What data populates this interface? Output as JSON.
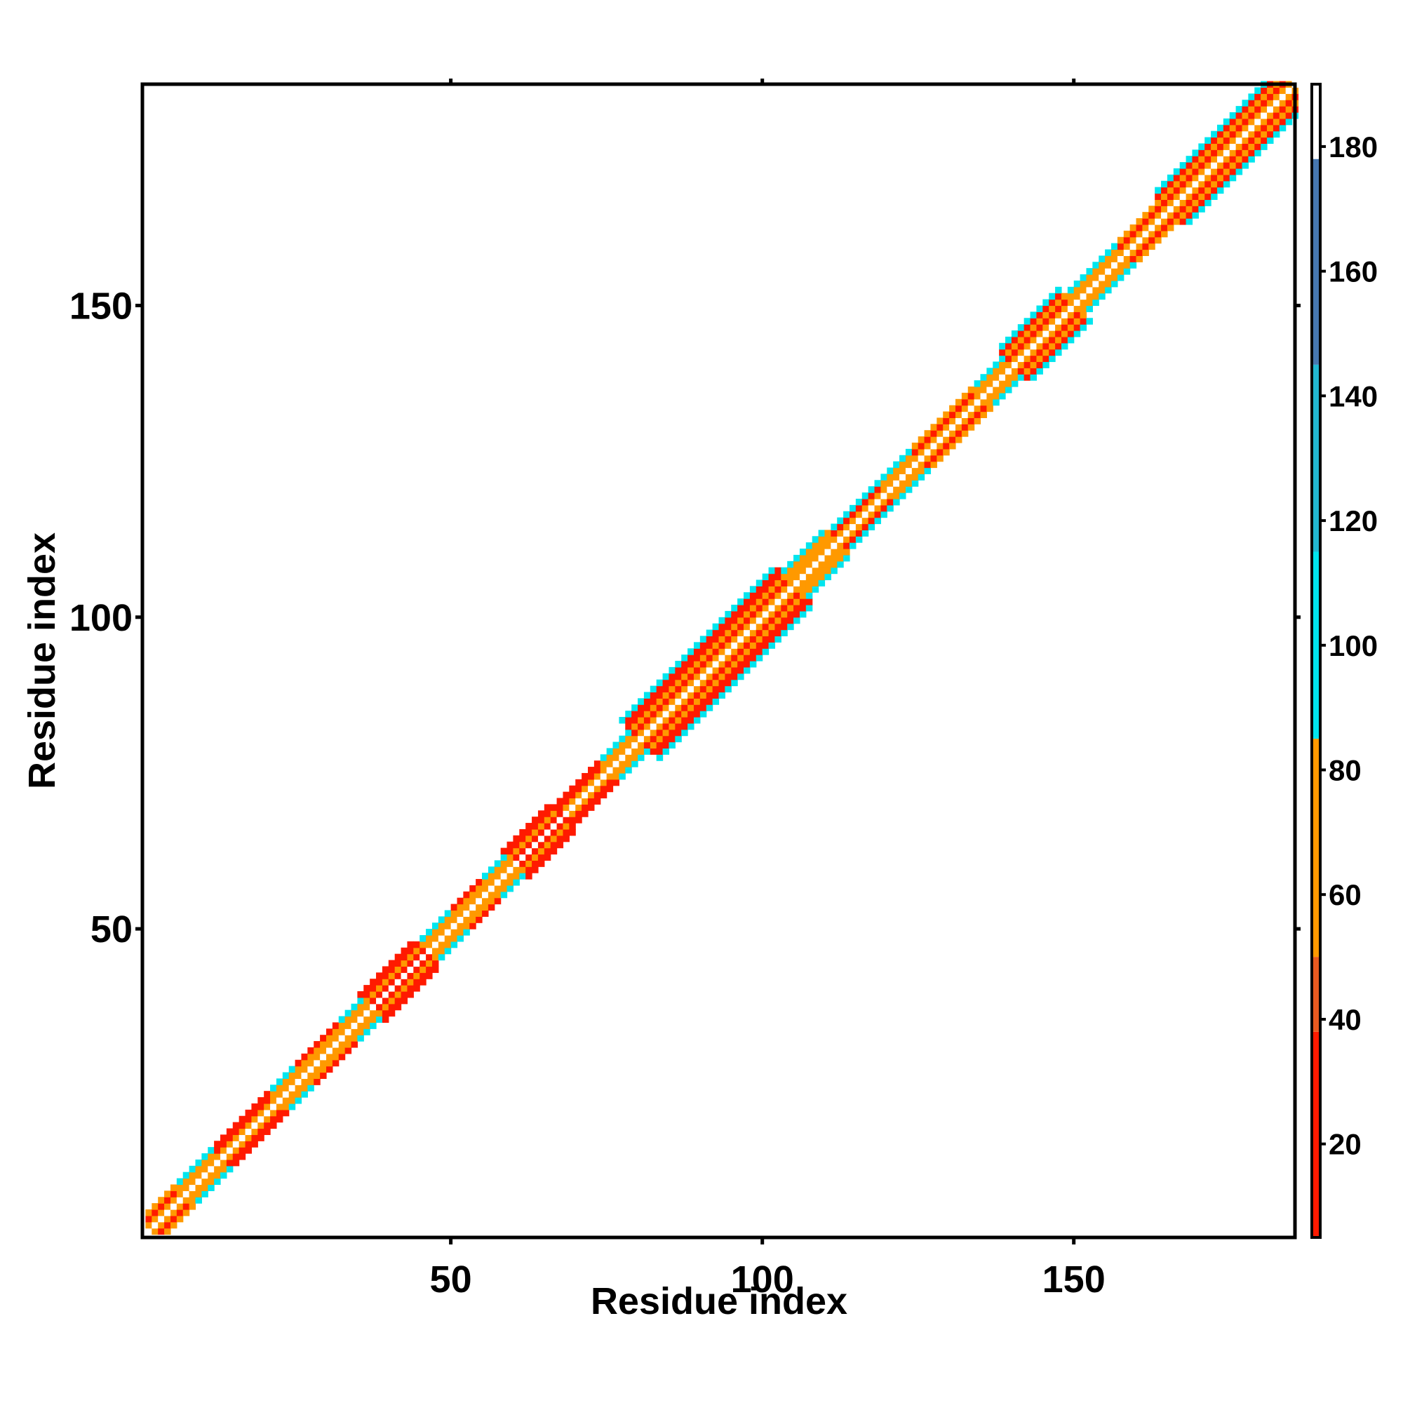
{
  "chart_data": {
    "type": "heatmap",
    "title": "",
    "xlabel": "Residue index",
    "ylabel": "Residue index",
    "xlim": [
      1,
      185
    ],
    "ylim": [
      1,
      185
    ],
    "x_ticks": [
      50,
      100,
      150
    ],
    "y_ticks": [
      50,
      100,
      150
    ],
    "colorbar": {
      "range": [
        5,
        190
      ],
      "ticks": [
        20,
        40,
        60,
        80,
        100,
        120,
        140,
        160,
        180
      ],
      "bands": [
        {
          "from": 5,
          "to": 38,
          "color": "#ff1a00"
        },
        {
          "from": 38,
          "to": 50,
          "color": "#e85a20"
        },
        {
          "from": 50,
          "to": 85,
          "color": "#ff9900"
        },
        {
          "from": 85,
          "to": 115,
          "color": "#00e5ee"
        },
        {
          "from": 115,
          "to": 145,
          "color": "#22b7d2"
        },
        {
          "from": 145,
          "to": 178,
          "color": "#4677b0"
        },
        {
          "from": 178,
          "to": 190,
          "color": "#ffffff"
        }
      ]
    },
    "cell_colors": {
      "red": "#ff1a00",
      "orange": "#ff9900",
      "cyan": "#00e5ee",
      "diagonal": "#ffffff"
    },
    "segments": [
      {
        "start": 1,
        "end": 7,
        "half_width": 3,
        "pattern": [
          "orange",
          "red",
          "orange"
        ]
      },
      {
        "start": 7,
        "end": 13,
        "half_width": 3,
        "pattern": [
          "orange",
          "orange",
          "cyan"
        ]
      },
      {
        "start": 13,
        "end": 22,
        "half_width": 3,
        "pattern": [
          "orange",
          "red",
          "red"
        ]
      },
      {
        "start": 22,
        "end": 26,
        "half_width": 3,
        "pattern": [
          "orange",
          "orange",
          "cyan"
        ]
      },
      {
        "start": 26,
        "end": 33,
        "half_width": 3,
        "pattern": [
          "orange",
          "orange",
          "red"
        ]
      },
      {
        "start": 33,
        "end": 37,
        "half_width": 3,
        "pattern": [
          "orange",
          "orange",
          "cyan"
        ]
      },
      {
        "start": 37,
        "end": 46,
        "half_width": 4,
        "pattern": [
          "red",
          "orange",
          "red",
          "red"
        ]
      },
      {
        "start": 46,
        "end": 51,
        "half_width": 3,
        "pattern": [
          "orange",
          "orange",
          "cyan"
        ]
      },
      {
        "start": 51,
        "end": 56,
        "half_width": 3,
        "pattern": [
          "orange",
          "orange",
          "red"
        ]
      },
      {
        "start": 56,
        "end": 60,
        "half_width": 3,
        "pattern": [
          "orange",
          "orange",
          "cyan"
        ]
      },
      {
        "start": 60,
        "end": 68,
        "half_width": 4,
        "pattern": [
          "red",
          "orange",
          "red",
          "red"
        ]
      },
      {
        "start": 68,
        "end": 75,
        "half_width": 3,
        "pattern": [
          "orange",
          "red",
          "red"
        ]
      },
      {
        "start": 75,
        "end": 80,
        "half_width": 3,
        "pattern": [
          "orange",
          "orange",
          "cyan"
        ]
      },
      {
        "start": 80,
        "end": 105,
        "half_width": 6,
        "pattern": [
          "orange",
          "red",
          "orange",
          "red",
          "red",
          "cyan"
        ]
      },
      {
        "start": 105,
        "end": 112,
        "half_width": 4,
        "pattern": [
          "orange",
          "orange",
          "orange",
          "cyan"
        ]
      },
      {
        "start": 112,
        "end": 120,
        "half_width": 3,
        "pattern": [
          "orange",
          "red",
          "cyan"
        ]
      },
      {
        "start": 120,
        "end": 125,
        "half_width": 3,
        "pattern": [
          "orange",
          "orange",
          "cyan"
        ]
      },
      {
        "start": 125,
        "end": 135,
        "half_width": 3,
        "pattern": [
          "orange",
          "red",
          "orange"
        ]
      },
      {
        "start": 135,
        "end": 140,
        "half_width": 3,
        "pattern": [
          "orange",
          "orange",
          "cyan"
        ]
      },
      {
        "start": 140,
        "end": 150,
        "half_width": 5,
        "pattern": [
          "orange",
          "red",
          "orange",
          "red",
          "cyan"
        ]
      },
      {
        "start": 150,
        "end": 158,
        "half_width": 3,
        "pattern": [
          "orange",
          "orange",
          "cyan"
        ]
      },
      {
        "start": 158,
        "end": 165,
        "half_width": 3,
        "pattern": [
          "orange",
          "red",
          "orange"
        ]
      },
      {
        "start": 165,
        "end": 176,
        "half_width": 5,
        "pattern": [
          "orange",
          "red",
          "orange",
          "red",
          "cyan"
        ]
      },
      {
        "start": 176,
        "end": 186,
        "half_width": 5,
        "pattern": [
          "orange",
          "red",
          "orange",
          "red",
          "cyan"
        ]
      }
    ]
  }
}
